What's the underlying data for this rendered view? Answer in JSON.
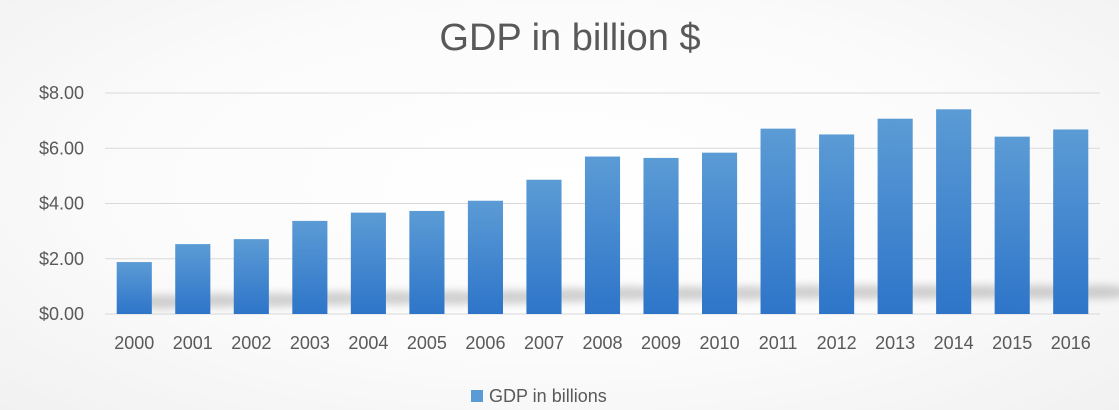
{
  "chart_data": {
    "type": "bar",
    "title": "GDP in billion  $",
    "xlabel": "",
    "ylabel": "",
    "categories": [
      "2000",
      "2001",
      "2002",
      "2003",
      "2004",
      "2005",
      "2006",
      "2007",
      "2008",
      "2009",
      "2010",
      "2011",
      "2012",
      "2013",
      "2014",
      "2015",
      "2016"
    ],
    "series": [
      {
        "name": "GDP in billions",
        "values": [
          1.88,
          2.53,
          2.71,
          3.37,
          3.67,
          3.73,
          4.1,
          4.86,
          5.7,
          5.65,
          5.84,
          6.71,
          6.5,
          7.07,
          7.41,
          6.42,
          6.68
        ]
      }
    ],
    "ylim": [
      0,
      8
    ],
    "yticks": [
      "$0.00",
      "$2.00",
      "$4.00",
      "$6.00",
      "$8.00"
    ],
    "grid": true,
    "legend_position": "bottom",
    "colors": {
      "bar_top": "#5B9BD5",
      "bar_bottom": "#2E75C9",
      "grid": "#D9D9D9",
      "text": "#595959"
    }
  }
}
